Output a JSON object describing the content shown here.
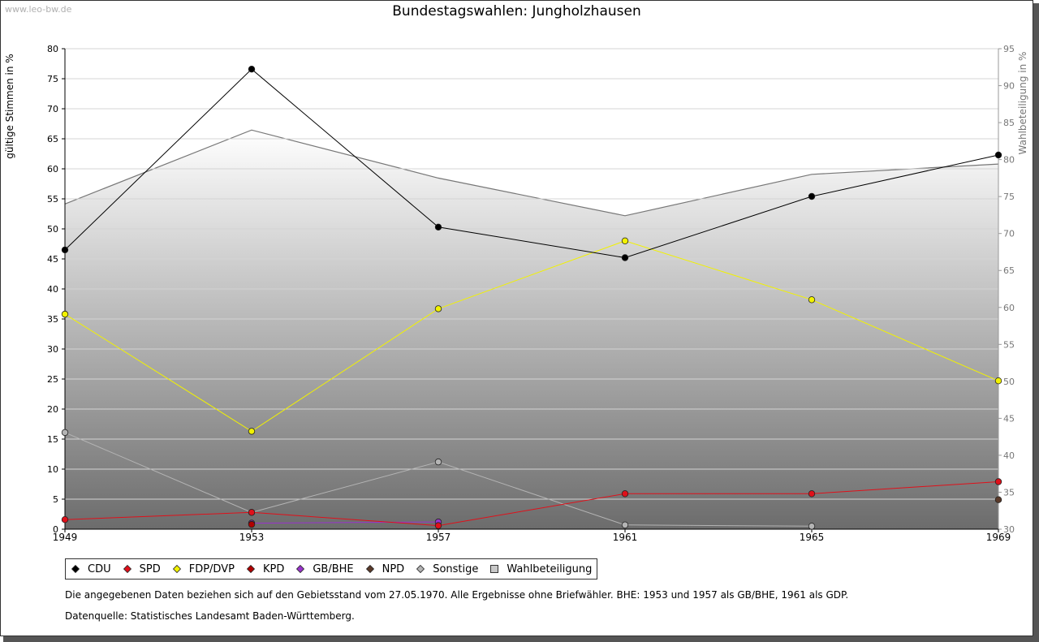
{
  "watermark": "www.leo-bw.de",
  "chart_data": {
    "type": "line",
    "title": "Bundestagswahlen: Jungholzhausen",
    "ylabel": "gültige Stimmen in %",
    "ylabel_right": "Wahlbeteiligung in %",
    "categories": [
      "1949",
      "1953",
      "1957",
      "1961",
      "1965",
      "1969"
    ],
    "ylim": [
      0,
      80
    ],
    "ylim_right": [
      30,
      95
    ],
    "yticks": [
      0,
      5,
      10,
      15,
      20,
      25,
      30,
      35,
      40,
      45,
      50,
      55,
      60,
      65,
      70,
      75,
      80
    ],
    "yticks_right": [
      30,
      35,
      40,
      45,
      50,
      55,
      60,
      65,
      70,
      75,
      80,
      85,
      90,
      95
    ],
    "grid": true,
    "legend_position": "bottom",
    "series": [
      {
        "name": "CDU",
        "color": "#000000",
        "values": [
          46.5,
          76.6,
          50.3,
          45.2,
          55.4,
          62.3
        ]
      },
      {
        "name": "SPD",
        "color": "#e0101a",
        "values": [
          1.6,
          2.8,
          0.6,
          5.9,
          5.9,
          7.9
        ]
      },
      {
        "name": "FDP/DVP",
        "color": "#f2f200",
        "values": [
          35.8,
          16.3,
          36.7,
          48.0,
          38.2,
          24.7
        ]
      },
      {
        "name": "KPD",
        "color": "#b00000",
        "values": [
          null,
          0.8,
          null,
          null,
          null,
          null
        ]
      },
      {
        "name": "GB/BHE",
        "color": "#9933cc",
        "values": [
          null,
          1.0,
          1.2,
          null,
          null,
          null
        ]
      },
      {
        "name": "NPD",
        "color": "#5a3a2a",
        "values": [
          null,
          null,
          null,
          null,
          null,
          4.9
        ]
      },
      {
        "name": "Sonstige",
        "color": "#b4b4b4",
        "values": [
          16.1,
          2.8,
          11.2,
          0.7,
          0.5,
          null
        ]
      }
    ],
    "turnout": {
      "name": "Wahlbeteiligung",
      "axis": "right",
      "values": [
        74.0,
        84.0,
        77.5,
        72.4,
        78.0,
        79.4
      ]
    }
  },
  "notes": {
    "line1": "Die angegebenen Daten beziehen sich auf den Gebietsstand vom 27.05.1970. Alle Ergebnisse ohne Briefwähler. BHE: 1953 und 1957 als GB/BHE, 1961 als GDP.",
    "line2": "Datenquelle: Statistisches Landesamt Baden-Württemberg."
  }
}
